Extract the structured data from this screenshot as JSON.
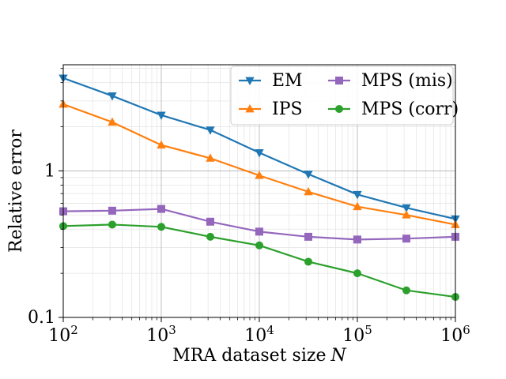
{
  "chart_data": {
    "type": "line",
    "title": "",
    "xlabel": "MRA dataset size",
    "xlabel_var": "N",
    "ylabel": "Relative error",
    "xscale": "log",
    "yscale": "log",
    "xlim": [
      100,
      1000000
    ],
    "ylim": [
      0.1,
      5.3
    ],
    "grid": "major and minor",
    "legend_position": "top-right",
    "legend_columns": 2,
    "x_ticks": [
      {
        "value": 100,
        "base": "10",
        "exp": "2"
      },
      {
        "value": 1000,
        "base": "10",
        "exp": "3"
      },
      {
        "value": 10000,
        "base": "10",
        "exp": "4"
      },
      {
        "value": 100000,
        "base": "10",
        "exp": "5"
      },
      {
        "value": 1000000,
        "base": "10",
        "exp": "6"
      }
    ],
    "y_ticks": [
      {
        "value": 0.1,
        "label": "0.1"
      },
      {
        "value": 1,
        "label": "1"
      }
    ],
    "x": [
      100,
      316,
      1000,
      3162,
      10000,
      31623,
      100000,
      316228,
      1000000
    ],
    "series": [
      {
        "name": "EM",
        "color": "#1f77b4",
        "marker": "triangle-down",
        "values": [
          4.3,
          3.25,
          2.4,
          1.9,
          1.33,
          0.95,
          0.69,
          0.56,
          0.47
        ]
      },
      {
        "name": "IPS",
        "color": "#ff7f0e",
        "marker": "triangle-up",
        "values": [
          2.85,
          2.15,
          1.5,
          1.22,
          0.93,
          0.72,
          0.57,
          0.5,
          0.43
        ]
      },
      {
        "name": "MPS (mis)",
        "color": "#9467bd",
        "marker": "square",
        "values": [
          0.53,
          0.535,
          0.55,
          0.45,
          0.385,
          0.355,
          0.34,
          0.345,
          0.355
        ]
      },
      {
        "name": "MPS (corr)",
        "color": "#2ca02c",
        "marker": "circle",
        "values": [
          0.42,
          0.43,
          0.415,
          0.355,
          0.31,
          0.24,
          0.2,
          0.153,
          0.138
        ]
      }
    ]
  }
}
